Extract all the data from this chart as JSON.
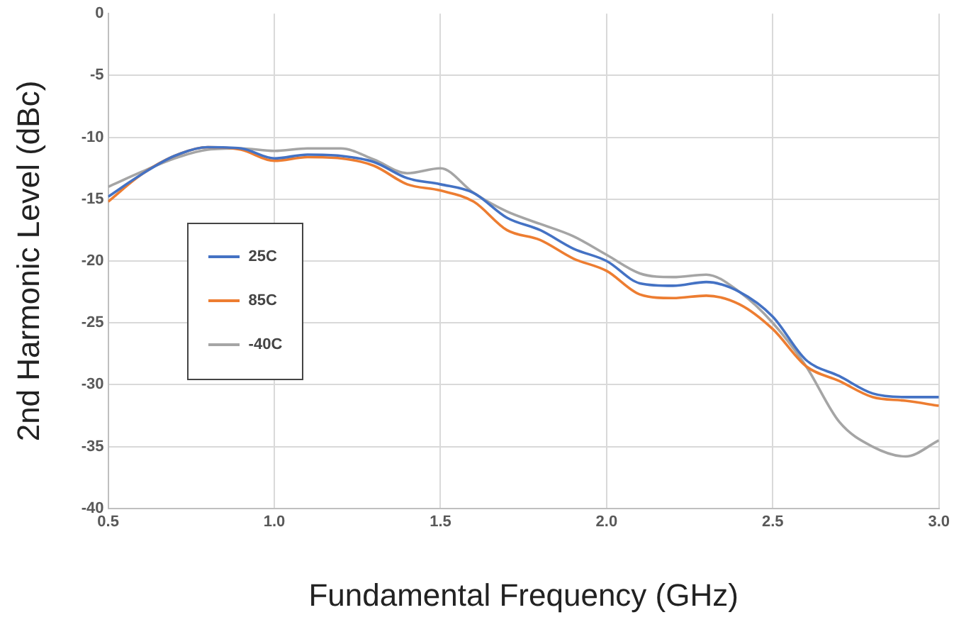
{
  "chart_data": {
    "type": "line",
    "xlabel": "Fundamental Frequency (GHz)",
    "ylabel": "2nd Harmonic Level (dBc)",
    "x": [
      0.5,
      0.6,
      0.7,
      0.8,
      0.9,
      1.0,
      1.1,
      1.2,
      1.3,
      1.4,
      1.5,
      1.6,
      1.7,
      1.8,
      1.9,
      2.0,
      2.1,
      2.2,
      2.3,
      2.4,
      2.5,
      2.6,
      2.7,
      2.8,
      2.9,
      3.0
    ],
    "series": [
      {
        "name": "25C",
        "color": "#4472c4",
        "values": [
          -14.8,
          -13,
          -11.5,
          -10.8,
          -10.9,
          -11.7,
          -11.4,
          -11.5,
          -12,
          -13.3,
          -13.8,
          -14.5,
          -16.5,
          -17.5,
          -19,
          -20,
          -21.8,
          -22,
          -21.7,
          -22.5,
          -24.5,
          -28,
          -29.3,
          -30.7,
          -31,
          -31
        ]
      },
      {
        "name": "85C",
        "color": "#ed7d31",
        "values": [
          -15.2,
          -13,
          -11.5,
          -10.8,
          -11,
          -11.9,
          -11.6,
          -11.7,
          -12.3,
          -13.8,
          -14.3,
          -15.2,
          -17.5,
          -18.3,
          -19.8,
          -20.8,
          -22.7,
          -23,
          -22.8,
          -23.5,
          -25.5,
          -28.5,
          -29.7,
          -31,
          -31.3,
          -31.7
        ]
      },
      {
        "name": "-40C",
        "color": "#a5a5a5",
        "values": [
          -14,
          -12.8,
          -11.7,
          -11,
          -10.9,
          -11.1,
          -10.9,
          -10.9,
          -11.8,
          -12.9,
          -12.5,
          -14.5,
          -16,
          -17,
          -18,
          -19.5,
          -21,
          -21.3,
          -21.1,
          -22.5,
          -25,
          -28.5,
          -33,
          -35,
          -35.8,
          -34.5
        ]
      }
    ],
    "xlim": [
      0.5,
      3.0
    ],
    "xticks": [
      0.5,
      {
        "value": 1,
        "label": "1.0"
      },
      1.5,
      {
        "value": 2,
        "label": "2.0"
      },
      2.5,
      {
        "value": 3,
        "label": "3.0"
      }
    ],
    "ylim": [
      -40,
      0
    ],
    "yticks": [
      -40,
      -35,
      -30,
      -25,
      -20,
      -15,
      -10,
      -5,
      0
    ],
    "grid": true,
    "legend": "left",
    "marker": "none",
    "line_style": "solid"
  }
}
